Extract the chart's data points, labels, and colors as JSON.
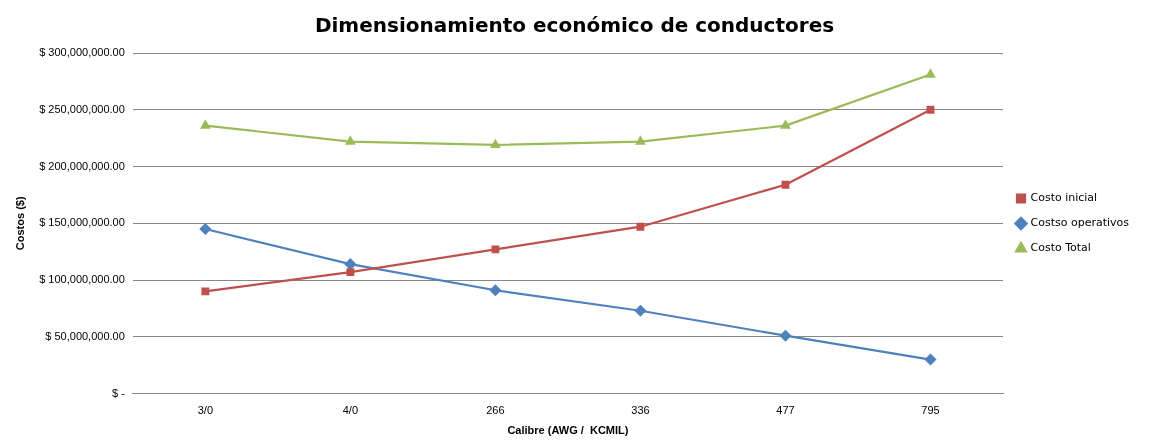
{
  "chart_data": {
    "type": "line",
    "title": "Dimensionamiento económico de conductores",
    "xlabel": "Calibre (AWG /  KCMIL)",
    "ylabel": "Costos ($)",
    "categories": [
      "3/0",
      "4/0",
      "266",
      "336",
      "477",
      "795"
    ],
    "series": [
      {
        "name": "Costo inicial",
        "color": "#c0504d",
        "marker": "square",
        "values": [
          90000000,
          107000000,
          127000000,
          147000000,
          184000000,
          250000000
        ]
      },
      {
        "name": "Costso operativos",
        "color": "#4f81bd",
        "marker": "diamond",
        "values": [
          145000000,
          114000000,
          91000000,
          73000000,
          51000000,
          30000000
        ]
      },
      {
        "name": "Costo Total",
        "color": "#9bbb59",
        "marker": "triangle",
        "values": [
          236000000,
          222000000,
          219000000,
          222000000,
          236000000,
          281000000
        ]
      }
    ],
    "ylim": [
      0,
      300000000
    ],
    "yticks": [
      {
        "value": 0,
        "label": "$ -"
      },
      {
        "value": 50000000,
        "label": "$ 50,000,000.00"
      },
      {
        "value": 100000000,
        "label": "$ 100,000,000.00"
      },
      {
        "value": 150000000,
        "label": "$ 150,000,000.00"
      },
      {
        "value": 200000000,
        "label": "$ 200,000,000.00"
      },
      {
        "value": 250000000,
        "label": "$ 250,000,000.00"
      },
      {
        "value": 300000000,
        "label": "$ 300,000,000.00"
      }
    ],
    "grid": "y",
    "legend": "right",
    "line_style": "solid"
  }
}
